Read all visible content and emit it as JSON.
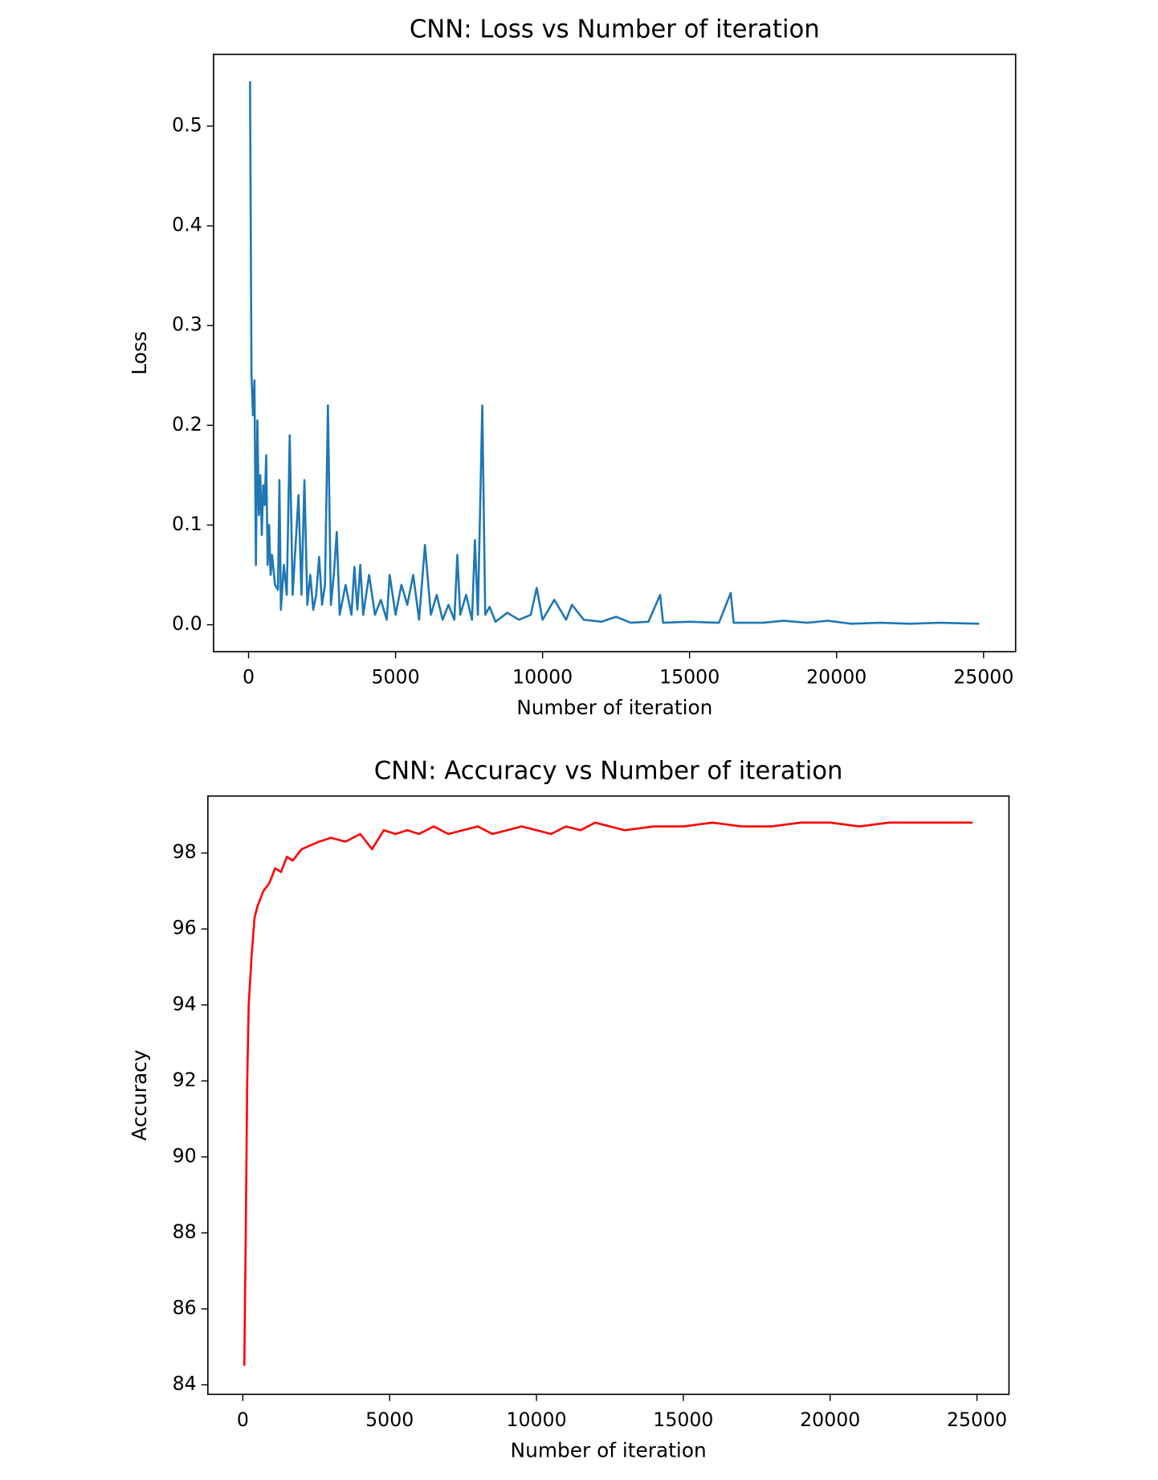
{
  "chart_data": [
    {
      "type": "line",
      "title": "CNN: Loss vs Number of iteration",
      "xlabel": "Number of iteration",
      "ylabel": "Loss",
      "x": [
        50,
        100,
        150,
        200,
        250,
        300,
        350,
        400,
        450,
        500,
        550,
        600,
        650,
        700,
        750,
        800,
        900,
        1000,
        1050,
        1100,
        1200,
        1300,
        1400,
        1500,
        1600,
        1700,
        1800,
        1900,
        2000,
        2100,
        2200,
        2300,
        2400,
        2500,
        2600,
        2700,
        2800,
        2900,
        3000,
        3100,
        3300,
        3500,
        3600,
        3700,
        3800,
        3900,
        4000,
        4100,
        4300,
        4500,
        4700,
        4800,
        5000,
        5200,
        5400,
        5600,
        5800,
        6000,
        6200,
        6400,
        6600,
        6800,
        7000,
        7100,
        7200,
        7400,
        7600,
        7700,
        7800,
        7950,
        8050,
        8200,
        8400,
        8800,
        9200,
        9600,
        9800,
        10000,
        10400,
        10800,
        11000,
        11400,
        12000,
        12500,
        13000,
        13600,
        14000,
        14100,
        15000,
        16000,
        16400,
        16500,
        17500,
        18200,
        19000,
        19700,
        20500,
        21500,
        22500,
        23500,
        24850
      ],
      "series": [
        {
          "name": "Loss",
          "color": "#1f77b4",
          "values": [
            0.545,
            0.25,
            0.21,
            0.245,
            0.06,
            0.205,
            0.11,
            0.15,
            0.09,
            0.14,
            0.12,
            0.17,
            0.06,
            0.1,
            0.05,
            0.07,
            0.04,
            0.035,
            0.145,
            0.015,
            0.06,
            0.03,
            0.19,
            0.03,
            0.08,
            0.13,
            0.03,
            0.145,
            0.02,
            0.05,
            0.015,
            0.03,
            0.068,
            0.02,
            0.04,
            0.22,
            0.02,
            0.05,
            0.093,
            0.01,
            0.04,
            0.01,
            0.058,
            0.015,
            0.06,
            0.01,
            0.03,
            0.05,
            0.01,
            0.025,
            0.005,
            0.05,
            0.01,
            0.04,
            0.02,
            0.05,
            0.005,
            0.08,
            0.01,
            0.03,
            0.005,
            0.02,
            0.005,
            0.07,
            0.01,
            0.03,
            0.005,
            0.085,
            0.01,
            0.22,
            0.01,
            0.018,
            0.003,
            0.012,
            0.005,
            0.01,
            0.037,
            0.005,
            0.025,
            0.005,
            0.02,
            0.005,
            0.003,
            0.008,
            0.002,
            0.003,
            0.03,
            0.002,
            0.003,
            0.002,
            0.032,
            0.002,
            0.002,
            0.004,
            0.002,
            0.004,
            0.001,
            0.002,
            0.001,
            0.002,
            0.001
          ]
        }
      ],
      "xlim": [
        -1190,
        26090
      ],
      "xticks": [
        0,
        5000,
        10000,
        15000,
        20000,
        25000
      ],
      "ylim": [
        -0.027,
        0.572
      ],
      "yticks": [
        {
          "value": 0,
          "label": "0.0"
        },
        0.1,
        0.2,
        0.3,
        0.4,
        0.5
      ]
    },
    {
      "type": "line",
      "title": "CNN: Accuracy vs Number of iteration",
      "xlabel": "Number of iteration",
      "ylabel": "Accuracy",
      "x": [
        50,
        100,
        150,
        200,
        300,
        400,
        500,
        700,
        900,
        1100,
        1300,
        1500,
        1700,
        2000,
        2300,
        2600,
        3000,
        3500,
        4000,
        4400,
        4800,
        5200,
        5600,
        6000,
        6500,
        7000,
        7500,
        8000,
        8500,
        9000,
        9500,
        10000,
        10500,
        11000,
        11500,
        12000,
        13000,
        14000,
        15000,
        16000,
        17000,
        18000,
        19000,
        20000,
        21000,
        22000,
        23000,
        24000,
        24850
      ],
      "series": [
        {
          "name": "Accuracy",
          "color": "#ff0000",
          "values": [
            84.5,
            88,
            92,
            94,
            95.3,
            96.3,
            96.6,
            97,
            97.2,
            97.6,
            97.5,
            97.9,
            97.8,
            98.1,
            98.2,
            98.3,
            98.4,
            98.3,
            98.5,
            98.1,
            98.6,
            98.5,
            98.6,
            98.5,
            98.7,
            98.5,
            98.6,
            98.7,
            98.5,
            98.6,
            98.7,
            98.6,
            98.5,
            98.7,
            98.6,
            98.8,
            98.6,
            98.7,
            98.7,
            98.8,
            98.7,
            98.7,
            98.8,
            98.8,
            98.7,
            98.8,
            98.8,
            98.8,
            98.8
          ]
        }
      ],
      "xlim": [
        -1190,
        26090
      ],
      "xticks": [
        0,
        5000,
        10000,
        15000,
        20000,
        25000
      ],
      "ylim": [
        83.75,
        99.5
      ],
      "yticks": [
        84,
        86,
        88,
        90,
        92,
        94,
        96,
        98
      ]
    }
  ]
}
